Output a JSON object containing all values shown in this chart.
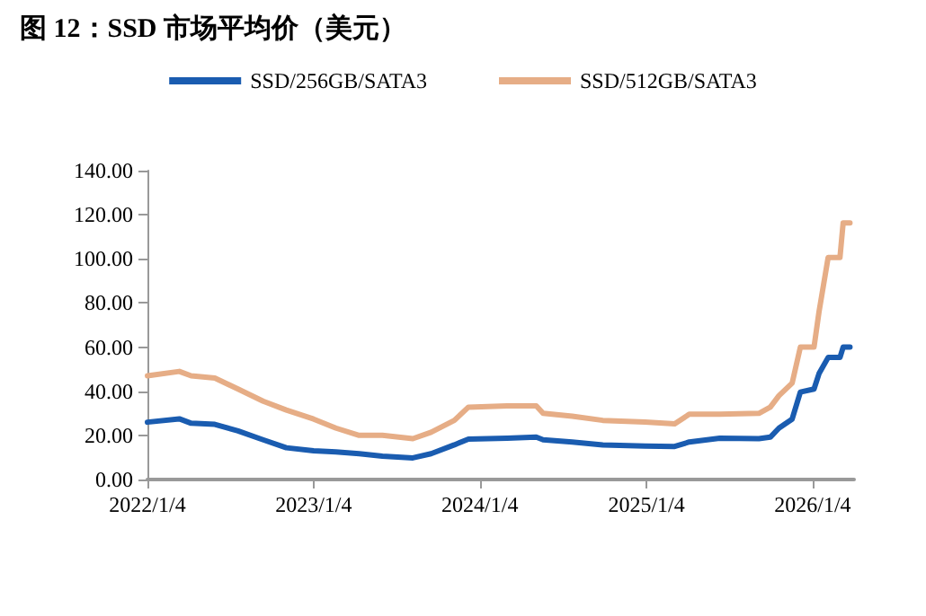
{
  "chart_data": {
    "type": "line",
    "title": "图 12：SSD 市场平均价（美元）",
    "x": [
      "2022-01-04",
      "2022-03-15",
      "2022-04-10",
      "2022-06-01",
      "2022-07-22",
      "2022-09-15",
      "2022-11-05",
      "2023-01-04",
      "2023-02-22",
      "2023-04-14",
      "2023-06-04",
      "2023-08-10",
      "2023-09-19",
      "2023-11-09",
      "2023-12-10",
      "2024-03-04",
      "2024-05-07",
      "2024-05-22",
      "2024-07-25",
      "2024-09-30",
      "2025-01-01",
      "2025-03-07",
      "2025-04-08",
      "2025-06-14",
      "2025-09-08",
      "2025-10-03",
      "2025-10-22",
      "2025-11-20",
      "2025-12-08",
      "2026-01-07",
      "2026-01-18",
      "2026-02-07",
      "2026-03-05",
      "2026-03-12",
      "2026-03-27"
    ],
    "series": [
      {
        "name": "SSD/256GB/SATA3",
        "color": "#1a5cb0",
        "values": [
          26,
          27.5,
          25.5,
          25,
          22,
          18,
          14.4,
          13,
          12.5,
          11.7,
          10.6,
          9.8,
          11.7,
          15.7,
          18.3,
          18.7,
          19.2,
          18,
          17,
          15.7,
          15.2,
          15,
          17,
          18.7,
          18.5,
          19.2,
          23.3,
          27.4,
          39.6,
          41,
          48,
          55.3,
          55.3,
          60,
          60
        ]
      },
      {
        "name": "SSD/512GB/SATA3",
        "color": "#e6ad86",
        "values": [
          47,
          49,
          47,
          46,
          41,
          35.5,
          31.5,
          27.4,
          23.3,
          20,
          20,
          18.5,
          21.4,
          26.8,
          32.8,
          33.4,
          33.4,
          30,
          28.7,
          26.8,
          26,
          25.2,
          29.6,
          29.6,
          30,
          32.8,
          38,
          43.7,
          60,
          60,
          76,
          100.6,
          100.6,
          116.3,
          116.3
        ]
      }
    ],
    "xlim": [
      "2022-01-04",
      "2026-04-05"
    ],
    "xticks": [
      {
        "value": "2022-01-04",
        "label": "2022/1/4"
      },
      {
        "value": "2023-01-04",
        "label": "2023/1/4"
      },
      {
        "value": "2024-01-04",
        "label": "2024/1/4"
      },
      {
        "value": "2025-01-04",
        "label": "2025/1/4"
      },
      {
        "value": "2026-01-04",
        "label": "2026/1/4"
      }
    ],
    "ylim": [
      0,
      140
    ],
    "yticks": [
      {
        "value": 0,
        "label": "0.00"
      },
      {
        "value": 20,
        "label": "20.00"
      },
      {
        "value": 40,
        "label": "40.00"
      },
      {
        "value": 60,
        "label": "60.00"
      },
      {
        "value": 80,
        "label": "80.00"
      },
      {
        "value": 100,
        "label": "100.00"
      },
      {
        "value": 120,
        "label": "120.00"
      },
      {
        "value": 140,
        "label": "140.00"
      }
    ],
    "legend": "top",
    "grid": false,
    "marker": "none",
    "line_style": "solid"
  }
}
